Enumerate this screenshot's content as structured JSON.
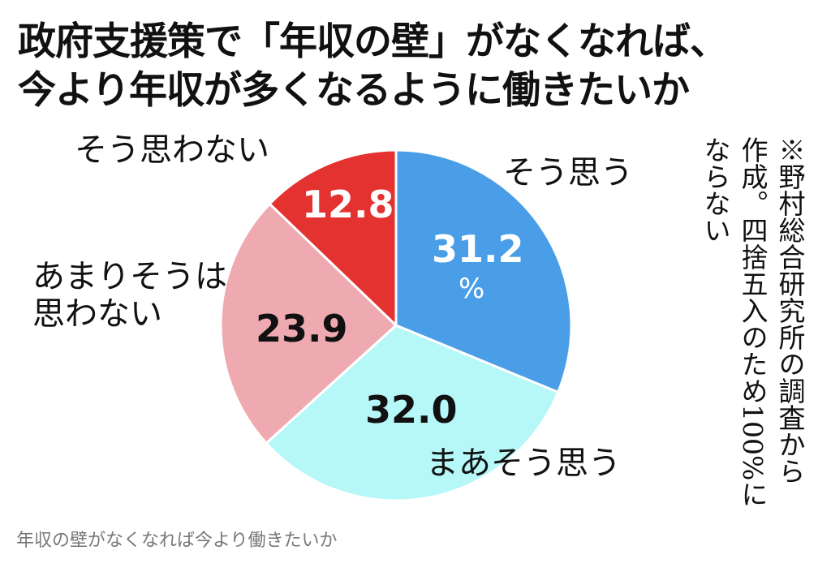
{
  "title_lines": [
    "政府支援策で「年収の壁」がなくなれば、",
    "今より年収が多くなるように働きたいか"
  ],
  "chart_data": {
    "type": "pie",
    "title": "政府支援策で「年収の壁」がなくなれば、今より年収が多くなるように働きたいか",
    "unit": "%",
    "start": "top, clockwise",
    "slices": [
      {
        "label": "そう思う",
        "value": 31.2,
        "value_text": "31.2",
        "color": "#4a9ee8",
        "text_color": "#ffffff"
      },
      {
        "label": "まあそう思う",
        "value": 32.0,
        "value_text": "32.0",
        "color": "#b6f7f7",
        "text_color": "#111111"
      },
      {
        "label": "あまりそうは思わない",
        "label_lines": [
          "あまりそうは",
          "思わない"
        ],
        "value": 23.9,
        "value_text": "23.9",
        "color": "#eeaab0",
        "text_color": "#111111"
      },
      {
        "label": "そう思わない",
        "value": 12.8,
        "value_text": "12.8",
        "color": "#e3322f",
        "text_color": "#ffffff"
      }
    ],
    "percent_sign": "%"
  },
  "note": "※野村総合研究所の調査から作成。四捨五入のため100%にならない",
  "caption": "年収の壁がなくなれば今より働きたいか"
}
